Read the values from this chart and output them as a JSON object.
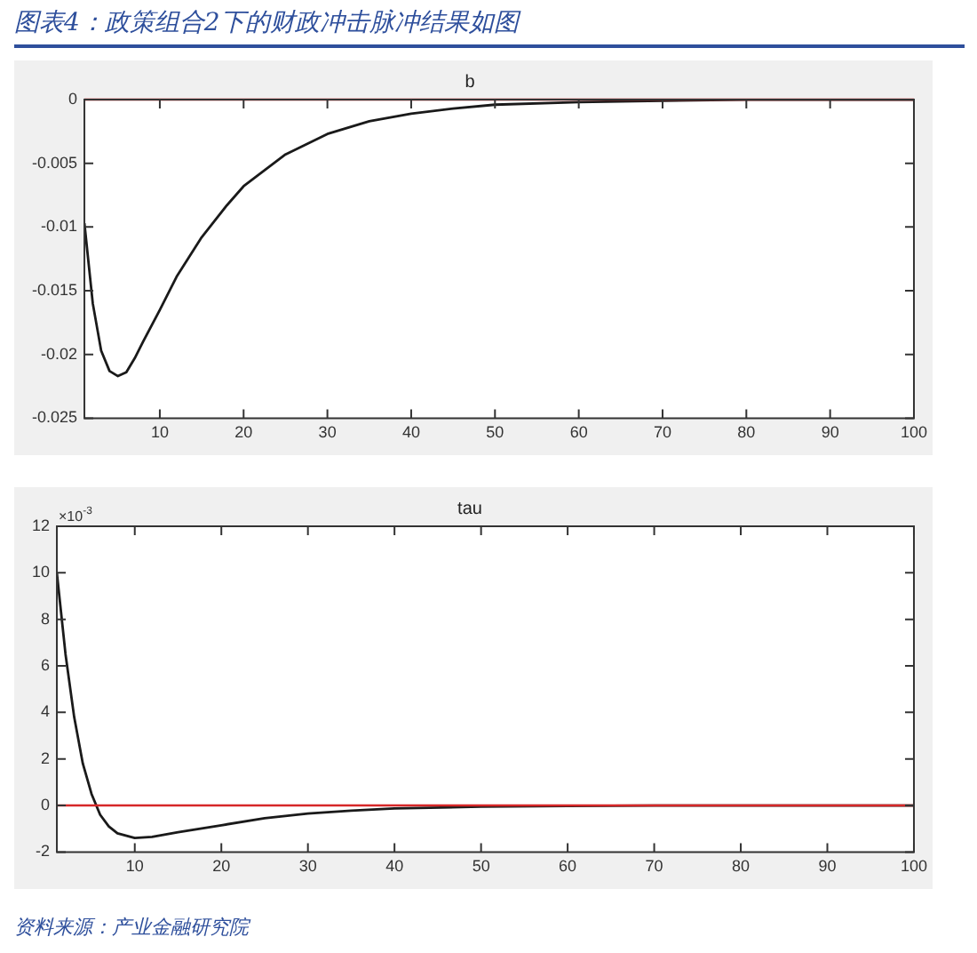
{
  "chart_data": [
    {
      "type": "line",
      "title": "图表4：政策组合2下的财政冲击脉冲结果如图",
      "subtitle": "b",
      "x": [
        1,
        2,
        3,
        4,
        5,
        6,
        7,
        8,
        10,
        12,
        15,
        18,
        20,
        25,
        30,
        35,
        40,
        45,
        50,
        60,
        70,
        80,
        90,
        100
      ],
      "series": [
        {
          "color": "#1a1a1a",
          "values": [
            -0.0097,
            -0.016,
            -0.0197,
            -0.0213,
            -0.0217,
            -0.0214,
            -0.0203,
            -0.019,
            -0.0165,
            -0.0139,
            -0.0108,
            -0.0083,
            -0.0068,
            -0.0043,
            -0.0027,
            -0.0017,
            -0.0011,
            -0.0007,
            -0.0004,
            -0.0002,
            -0.0001,
            0,
            0,
            0
          ]
        }
      ],
      "xlim": [
        1,
        100
      ],
      "xticks": [
        10,
        20,
        30,
        40,
        50,
        60,
        70,
        80,
        90,
        100
      ],
      "ylim": [
        -0.025,
        0
      ],
      "yticks": [
        -0.025,
        -0.02,
        -0.015,
        -0.01,
        -0.005,
        0
      ],
      "ref_lines": [
        {
          "axis": "y",
          "value": 0,
          "color": "#d62728"
        }
      ],
      "grid": false,
      "legend": false,
      "marker": "none",
      "line_style": "solid"
    },
    {
      "type": "line",
      "title": "tau",
      "x": [
        1,
        2,
        3,
        4,
        5,
        6,
        7,
        8,
        10,
        12,
        15,
        20,
        25,
        30,
        35,
        40,
        50,
        60,
        70,
        80,
        90,
        100
      ],
      "series": [
        {
          "color": "#1a1a1a",
          "values": [
            10,
            6.5,
            3.8,
            1.8,
            0.5,
            -0.4,
            -0.9,
            -1.2,
            -1.4,
            -1.35,
            -1.15,
            -0.85,
            -0.55,
            -0.35,
            -0.22,
            -0.13,
            -0.05,
            -0.02,
            0,
            0,
            0,
            0
          ]
        }
      ],
      "xlim": [
        1,
        100
      ],
      "xticks": [
        10,
        20,
        30,
        40,
        50,
        60,
        70,
        80,
        90,
        100
      ],
      "ylim": [
        -2,
        12
      ],
      "yticks": [
        -2,
        0,
        2,
        4,
        6,
        8,
        10,
        12
      ],
      "ref_lines": [
        {
          "axis": "y",
          "value": 0,
          "color": "#d62728"
        }
      ],
      "annotations": [
        "×10$^{-3}$",
        "资料来源：产业金融研究院"
      ],
      "grid": false,
      "legend": false,
      "marker": "none",
      "line_style": "solid"
    }
  ]
}
